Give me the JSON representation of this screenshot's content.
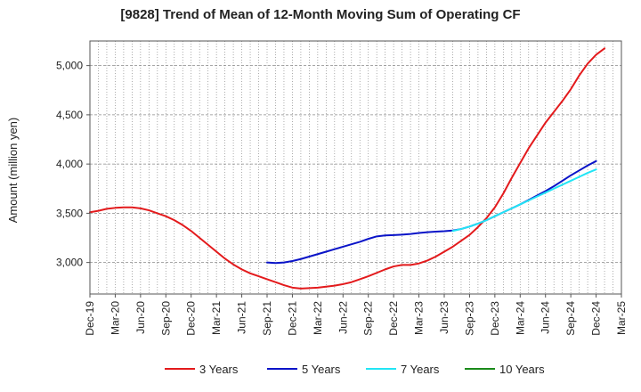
{
  "chart_data": {
    "type": "line",
    "title": "[9828]  Trend of Mean of 12-Month Moving Sum of Operating CF",
    "xlabel": "",
    "ylabel": "Amount (million yen)",
    "ylim": [
      2680,
      5250
    ],
    "yticks": [
      3000,
      3500,
      4000,
      4500,
      5000
    ],
    "ytick_labels": [
      "3,000",
      "3,500",
      "4,000",
      "4,500",
      "5,000"
    ],
    "x_start": "2019-12",
    "x_end": "2025-03",
    "xtick_labels": [
      "Dec-19",
      "Mar-20",
      "Jun-20",
      "Sep-20",
      "Dec-20",
      "Mar-21",
      "Jun-21",
      "Sep-21",
      "Dec-21",
      "Mar-22",
      "Jun-22",
      "Sep-22",
      "Dec-22",
      "Mar-23",
      "Jun-23",
      "Sep-23",
      "Dec-23",
      "Mar-24",
      "Jun-24",
      "Sep-24",
      "Dec-24",
      "Mar-25"
    ],
    "grid": true,
    "legend_position": "bottom",
    "series": [
      {
        "name": "3 Years",
        "color": "#e31a1c",
        "x_start_index": 0,
        "values": [
          3510,
          3525,
          3545,
          3555,
          3560,
          3560,
          3550,
          3530,
          3500,
          3470,
          3430,
          3380,
          3320,
          3250,
          3180,
          3110,
          3040,
          2980,
          2930,
          2890,
          2860,
          2830,
          2800,
          2770,
          2745,
          2735,
          2740,
          2745,
          2755,
          2765,
          2780,
          2800,
          2830,
          2860,
          2895,
          2930,
          2960,
          2975,
          2975,
          2990,
          3020,
          3060,
          3110,
          3160,
          3220,
          3280,
          3360,
          3450,
          3560,
          3700,
          3860,
          4010,
          4160,
          4290,
          4420,
          4530,
          4640,
          4760,
          4900,
          5020,
          5110,
          5175
        ]
      },
      {
        "name": "5 Years",
        "color": "#0a14c8",
        "x_start_index": 21,
        "values": [
          3000,
          2995,
          3000,
          3015,
          3035,
          3060,
          3085,
          3110,
          3135,
          3160,
          3185,
          3210,
          3240,
          3265,
          3275,
          3278,
          3283,
          3290,
          3300,
          3308,
          3313,
          3318,
          3325,
          3340,
          3365,
          3395,
          3430,
          3470,
          3510,
          3550,
          3590,
          3635,
          3680,
          3725,
          3775,
          3830,
          3885,
          3935,
          3985,
          4030
        ]
      },
      {
        "name": "7 Years",
        "color": "#22e5f5",
        "x_start_index": 43,
        "values": [
          3320,
          3340,
          3365,
          3395,
          3430,
          3470,
          3510,
          3550,
          3590,
          3630,
          3670,
          3710,
          3750,
          3790,
          3830,
          3870,
          3910,
          3945
        ]
      },
      {
        "name": "10 Years",
        "color": "#1a8a1a",
        "x_start_index": 0,
        "values": []
      }
    ]
  }
}
